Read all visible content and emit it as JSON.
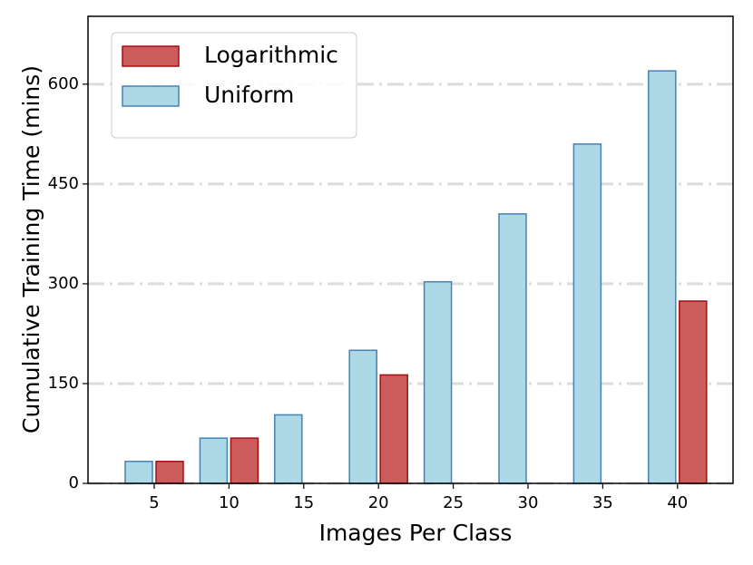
{
  "chart_data": {
    "type": "bar",
    "xlabel": "Images Per Class",
    "ylabel": "Cumulative Training Time (mins)",
    "categories": [
      "5",
      "10",
      "15",
      "20",
      "25",
      "30",
      "35",
      "40"
    ],
    "series": [
      {
        "name": "Logarithmic",
        "color": "#cd5c5c",
        "edgecolor": "#a01010",
        "values": [
          33,
          68,
          0,
          163,
          0,
          0,
          0,
          274
        ]
      },
      {
        "name": "Uniform",
        "color": "#add8e6",
        "edgecolor": "#4682b4",
        "values": [
          33,
          68,
          103,
          200,
          303,
          405,
          510,
          620
        ]
      }
    ],
    "ylim": [
      0,
      702
    ],
    "yticks": [
      0,
      150,
      300,
      450,
      600
    ],
    "grid": true,
    "legend": "upper left"
  }
}
